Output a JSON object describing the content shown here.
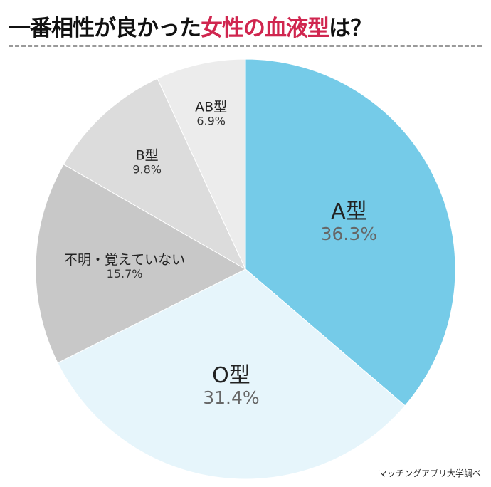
{
  "title": {
    "prefix": "一番相性が良かった",
    "highlight": "女性の血液型",
    "suffix": "は？",
    "highlight_color": "#d0264f"
  },
  "source": "マッチングアプリ大学調べ",
  "chart_data": {
    "type": "pie",
    "start": "12 o'clock, clockwise",
    "categories": [
      "A型",
      "O型",
      "不明・覚えていない",
      "B型",
      "AB型"
    ],
    "values": [
      36.3,
      31.4,
      15.7,
      9.8,
      6.9
    ],
    "labels": [
      "36.3%",
      "31.4%",
      "15.7%",
      "9.8%",
      "6.9%"
    ],
    "colors": [
      "#75cbe8",
      "#e6f5fb",
      "#c8c8c8",
      "#dcdcdc",
      "#ececec"
    ],
    "legend": "none"
  }
}
